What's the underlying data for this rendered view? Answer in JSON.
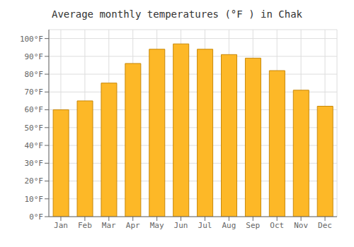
{
  "chart_data": {
    "type": "bar",
    "title": "Average monthly temperatures (°F ) in Chak",
    "categories": [
      "Jan",
      "Feb",
      "Mar",
      "Apr",
      "May",
      "Jun",
      "Jul",
      "Aug",
      "Sep",
      "Oct",
      "Nov",
      "Dec"
    ],
    "values": [
      60,
      65,
      75,
      86,
      94,
      97,
      94,
      91,
      89,
      82,
      71,
      62
    ],
    "color": "#FDB827",
    "ylim": [
      0,
      105
    ],
    "yticks": [
      {
        "value": 0,
        "label": "0°F"
      },
      {
        "value": 10,
        "label": "10°F"
      },
      {
        "value": 20,
        "label": "20°F"
      },
      {
        "value": 30,
        "label": "30°F"
      },
      {
        "value": 40,
        "label": "40°F"
      },
      {
        "value": 50,
        "label": "50°F"
      },
      {
        "value": 60,
        "label": "60°F"
      },
      {
        "value": 70,
        "label": "70°F"
      },
      {
        "value": 80,
        "label": "80°F"
      },
      {
        "value": 90,
        "label": "90°F"
      },
      {
        "value": 100,
        "label": "100°F"
      }
    ],
    "grid": true
  }
}
